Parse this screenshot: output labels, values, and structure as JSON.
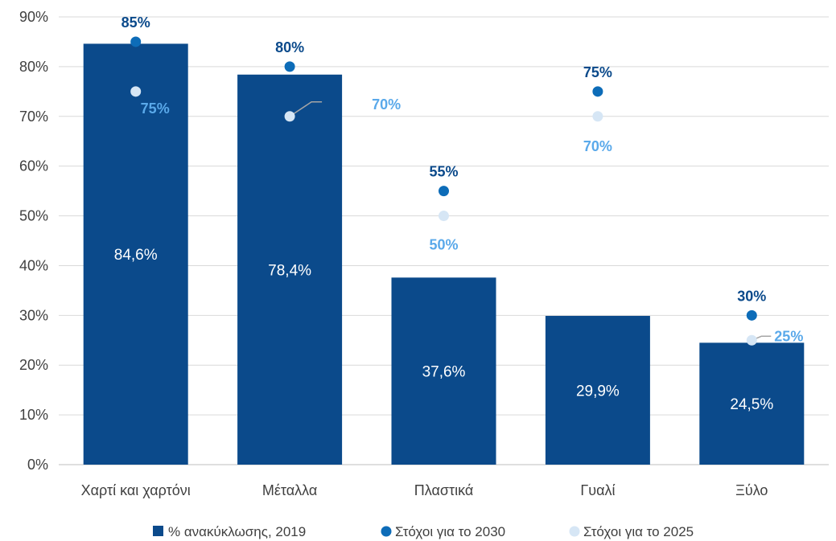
{
  "chart_data": {
    "type": "bar",
    "title": "",
    "xlabel": "",
    "ylabel": "",
    "ylim": [
      0,
      0.9
    ],
    "y_ticks": [
      "0%",
      "10%",
      "20%",
      "30%",
      "40%",
      "50%",
      "60%",
      "70%",
      "80%",
      "90%"
    ],
    "y_tick_values": [
      0,
      0.1,
      0.2,
      0.3,
      0.4,
      0.5,
      0.6,
      0.7,
      0.8,
      0.9
    ],
    "grid": "horizontal",
    "legend_position": "bottom",
    "categories": [
      "Χαρτί και χαρτόνι",
      "Μέταλλα",
      "Πλαστικά",
      "Γυαλί",
      "Ξύλο"
    ],
    "series": [
      {
        "name": "% ανακύκλωσης, 2019",
        "kind": "bar",
        "color": "#0b4a8b",
        "values": [
          0.846,
          0.784,
          0.376,
          0.299,
          0.245
        ],
        "labels": [
          "84,6%",
          "78,4%",
          "37,6%",
          "29,9%",
          "24,5%"
        ]
      },
      {
        "name": "Στόχοι για το 2030",
        "kind": "dot",
        "color": "#0d6cb8",
        "label_color": "#0b4a8b",
        "values": [
          0.85,
          0.8,
          0.55,
          0.75,
          0.3
        ],
        "labels": [
          "85%",
          "80%",
          "55%",
          "75%",
          "30%"
        ]
      },
      {
        "name": "Στόχοι για το 2025",
        "kind": "dot",
        "color": "#d6e6f5",
        "label_color": "#5aa9ea",
        "values": [
          0.75,
          0.7,
          0.5,
          0.7,
          0.25
        ],
        "labels": [
          "75%",
          "70%",
          "50%",
          "70%",
          "25%"
        ]
      }
    ]
  }
}
